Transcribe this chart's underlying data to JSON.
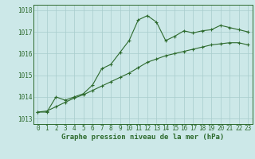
{
  "xlabel": "Graphe pression niveau de la mer (hPa)",
  "x": [
    0,
    1,
    2,
    3,
    4,
    5,
    6,
    7,
    8,
    9,
    10,
    11,
    12,
    13,
    14,
    15,
    16,
    17,
    18,
    19,
    20,
    21,
    22,
    23
  ],
  "line1": [
    1013.3,
    1013.3,
    1014.0,
    1013.85,
    1014.0,
    1014.15,
    1014.55,
    1015.3,
    1015.5,
    1016.05,
    1016.6,
    1017.55,
    1017.75,
    1017.45,
    1016.6,
    1016.8,
    1017.05,
    1016.95,
    1017.05,
    1017.1,
    1017.3,
    1017.2,
    1017.1,
    1017.0
  ],
  "line2": [
    1013.3,
    1013.35,
    1013.55,
    1013.75,
    1013.95,
    1014.1,
    1014.3,
    1014.5,
    1014.7,
    1014.9,
    1015.1,
    1015.35,
    1015.6,
    1015.75,
    1015.9,
    1016.0,
    1016.1,
    1016.2,
    1016.3,
    1016.4,
    1016.45,
    1016.5,
    1016.5,
    1016.4
  ],
  "line_color": "#2d6a2d",
  "bg_color": "#cce8e8",
  "grid_color": "#a8cccc",
  "ylim": [
    1012.75,
    1018.25
  ],
  "yticks": [
    1013,
    1014,
    1015,
    1016,
    1017,
    1018
  ],
  "xlim": [
    -0.5,
    23.5
  ],
  "xticks": [
    0,
    1,
    2,
    3,
    4,
    5,
    6,
    7,
    8,
    9,
    10,
    11,
    12,
    13,
    14,
    15,
    16,
    17,
    18,
    19,
    20,
    21,
    22,
    23
  ],
  "tick_fontsize": 5.5,
  "xlabel_fontsize": 6.5
}
